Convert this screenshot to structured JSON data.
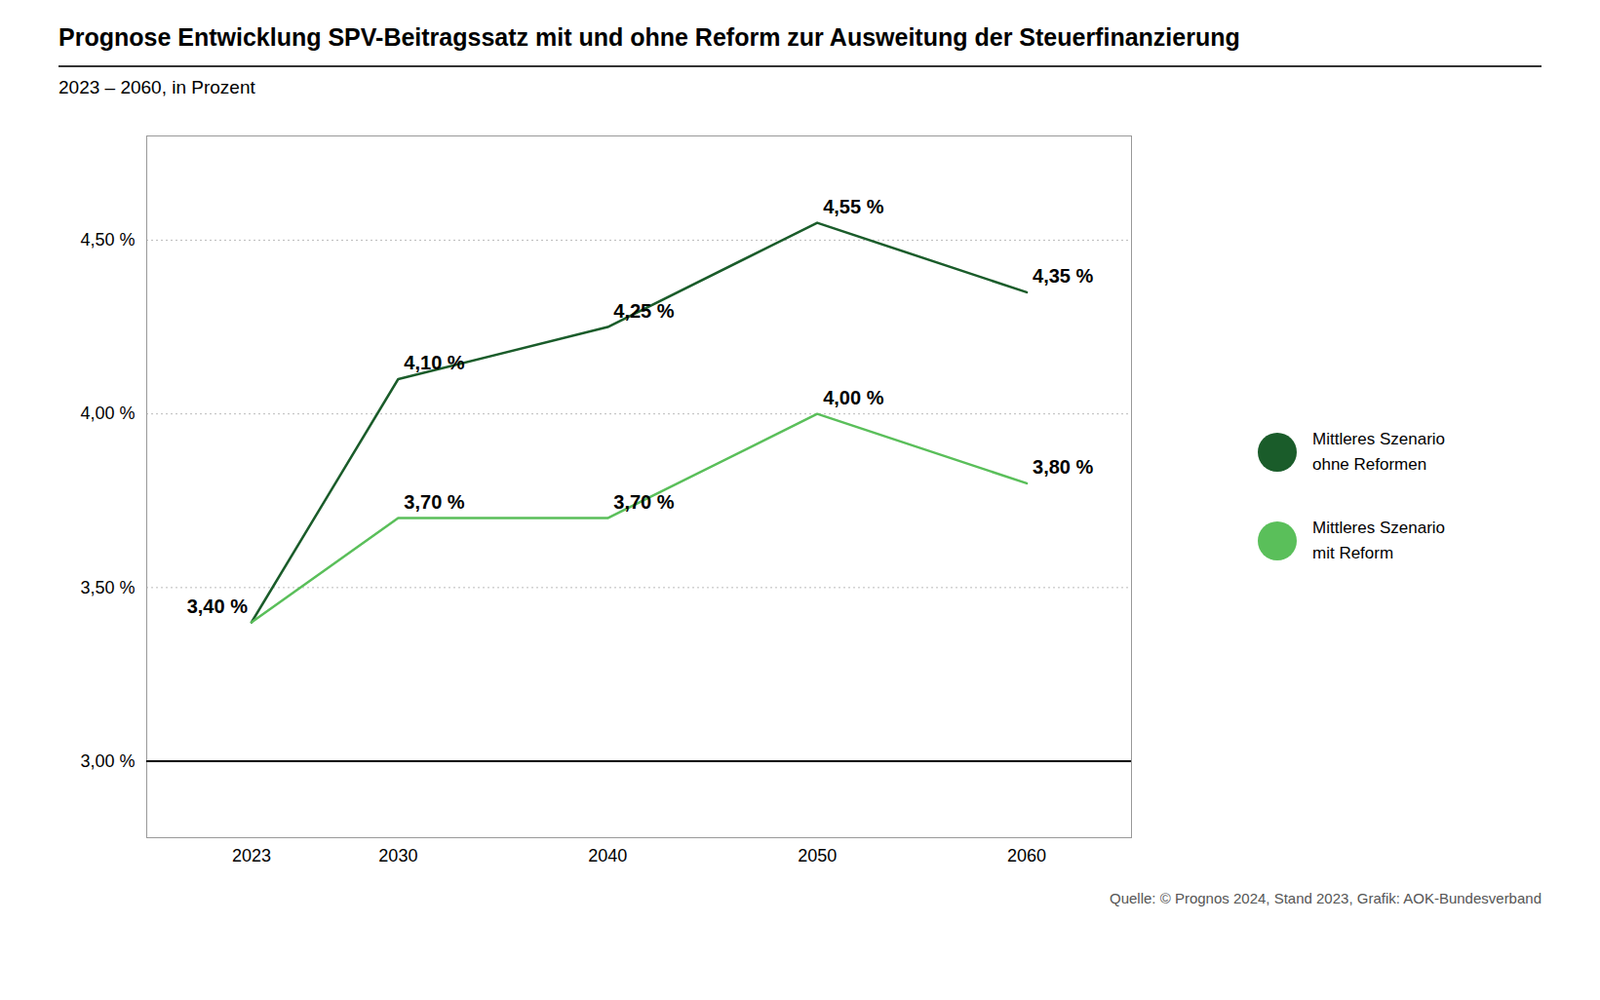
{
  "chart_data": {
    "type": "line",
    "title": "Prognose Entwicklung SPV-Beitragssatz mit und ohne Reform zur Ausweitung der Steuerfinanzierung",
    "subtitle": "2023 – 2060, in Prozent",
    "source": "Quelle: © Prognos 2024, Stand 2023, Grafik: AOK-Bundesverband",
    "x": [
      2023,
      2030,
      2040,
      2050,
      2060
    ],
    "xlim": [
      2018,
      2065
    ],
    "xticks": [
      2023,
      2030,
      2040,
      2050,
      2060
    ],
    "ylim": [
      2.78,
      4.8
    ],
    "yticks": [
      {
        "value": 3.0,
        "label": "3,00 %"
      },
      {
        "value": 3.5,
        "label": "3,50 %"
      },
      {
        "value": 4.0,
        "label": "4,00 %"
      },
      {
        "value": 4.5,
        "label": "4,50 %"
      }
    ],
    "grid": true,
    "legend": "right",
    "data_labels": true,
    "series": [
      {
        "name": "Mittleres Szenario\nohne Reformen",
        "color": "#1a5c2a",
        "values": [
          3.4,
          4.1,
          4.25,
          4.55,
          4.35
        ],
        "value_labels": [
          "3,40 %",
          "4,10 %",
          "4,25 %",
          "4,55 %",
          "4,35 %"
        ]
      },
      {
        "name": "Mittleres Szenario\nmit Reform",
        "color": "#5abf5a",
        "values": [
          3.4,
          3.7,
          3.7,
          4.0,
          3.8
        ],
        "value_labels": [
          null,
          "3,70 %",
          "3,70 %",
          "4,00 %",
          "3,80 %"
        ]
      }
    ]
  }
}
